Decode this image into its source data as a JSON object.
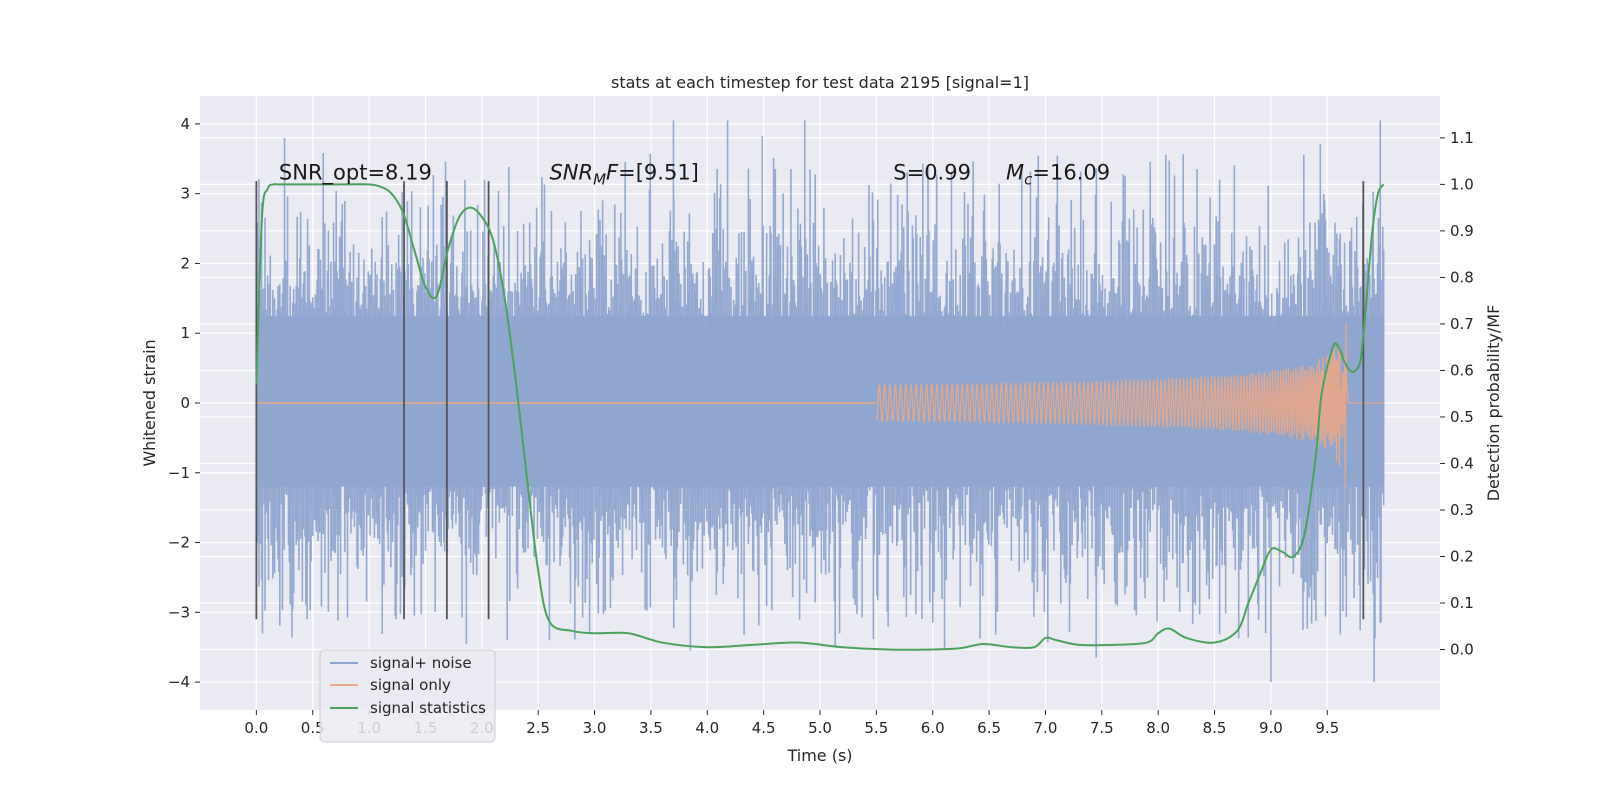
{
  "chart_data": {
    "type": "line",
    "title": "stats at each timestep for test data 2195 [signal=1]",
    "xlabel": "Time (s)",
    "ylabel": "Whitened strain",
    "y2label": "Detection probability/MF",
    "xlim": [
      -0.5,
      10.5
    ],
    "ylim": [
      -4.4,
      4.4
    ],
    "y2lim": [
      -0.13,
      1.19
    ],
    "x_ticks": [
      0.0,
      0.5,
      1.0,
      1.5,
      2.0,
      2.5,
      3.0,
      3.5,
      4.0,
      4.5,
      5.0,
      5.5,
      6.0,
      6.5,
      7.0,
      7.5,
      8.0,
      8.5,
      9.0,
      9.5
    ],
    "x_tick_labels": [
      "0.0",
      "0.5",
      "1.0",
      "1.5",
      "2.0",
      "2.5",
      "3.0",
      "3.5",
      "4.0",
      "4.5",
      "5.0",
      "5.5",
      "6.0",
      "6.5",
      "7.0",
      "7.5",
      "8.0",
      "8.5",
      "9.0",
      "9.5"
    ],
    "y_ticks": [
      4,
      3,
      2,
      1,
      0,
      -1,
      -2,
      -3,
      -4
    ],
    "y_tick_labels": [
      "4",
      "3",
      "2",
      "1",
      "0",
      "−1",
      "−2",
      "−3",
      "−4"
    ],
    "y2_ticks": [
      1.1,
      1.0,
      0.9,
      0.8,
      0.7,
      0.6,
      0.5,
      0.4,
      0.3,
      0.2,
      0.1,
      0.0
    ],
    "y2_tick_labels": [
      "1.1",
      "1.0",
      "0.9",
      "0.8",
      "0.7",
      "0.6",
      "0.5",
      "0.4",
      "0.3",
      "0.2",
      "0.1",
      "0.0"
    ],
    "annotations": [
      {
        "text": "SNR_opt=8.19",
        "x": 0.2,
        "y": 3.2
      },
      {
        "text": "SNR_MF=[9.51]",
        "x": 2.6,
        "y": 3.2
      },
      {
        "text": "S=0.99",
        "x": 5.65,
        "y": 3.2
      },
      {
        "text": "M_c=16.09",
        "x": 6.65,
        "y": 3.2
      }
    ],
    "vertical_markers": {
      "x": [
        0.0,
        1.31,
        1.69,
        2.06,
        9.82
      ],
      "y_range": [
        -3.1,
        3.18
      ],
      "color": "#555555"
    },
    "series": [
      {
        "name": "signal+ noise",
        "axis": "left",
        "color": "#8ea5cf",
        "style": "dense noise trace",
        "t_range": [
          0.0,
          10.0
        ],
        "typical_range": [
          -1.2,
          1.25
        ],
        "extreme_range": [
          -4.0,
          4.05
        ]
      },
      {
        "name": "signal only",
        "axis": "left",
        "color": "#e9a987",
        "style": "chirp",
        "t_range": [
          0.0,
          10.0
        ],
        "onset_s": 5.5,
        "merger_s": 9.67,
        "peak_amplitude": 1.45
      },
      {
        "name": "signal statistics",
        "axis": "right",
        "color": "#4aa35a",
        "x": [
          0.0,
          0.05,
          0.1,
          0.15,
          0.2,
          0.4,
          0.6,
          0.8,
          1.0,
          1.1,
          1.2,
          1.3,
          1.4,
          1.5,
          1.6,
          1.7,
          1.8,
          1.9,
          2.0,
          2.1,
          2.2,
          2.3,
          2.4,
          2.5,
          2.6,
          2.8,
          3.0,
          3.3,
          3.6,
          4.0,
          4.4,
          4.8,
          5.2,
          5.6,
          6.0,
          6.25,
          6.45,
          6.7,
          6.9,
          7.0,
          7.1,
          7.3,
          7.6,
          7.9,
          8.0,
          8.1,
          8.25,
          8.5,
          8.7,
          8.8,
          8.9,
          9.0,
          9.1,
          9.2,
          9.3,
          9.4,
          9.45,
          9.55,
          9.6,
          9.65,
          9.7,
          9.75,
          9.8,
          9.85,
          9.9,
          9.95,
          10.0
        ],
        "values": [
          0.57,
          0.93,
          0.99,
          1.0,
          1.0,
          1.0,
          1.0,
          1.0,
          1.0,
          0.995,
          0.98,
          0.94,
          0.86,
          0.78,
          0.76,
          0.86,
          0.93,
          0.95,
          0.93,
          0.88,
          0.76,
          0.58,
          0.37,
          0.17,
          0.06,
          0.04,
          0.035,
          0.035,
          0.015,
          0.005,
          0.01,
          0.015,
          0.005,
          0.0,
          0.0,
          0.003,
          0.012,
          0.005,
          0.005,
          0.025,
          0.02,
          0.01,
          0.01,
          0.015,
          0.035,
          0.045,
          0.025,
          0.015,
          0.04,
          0.1,
          0.16,
          0.215,
          0.21,
          0.2,
          0.25,
          0.42,
          0.55,
          0.65,
          0.65,
          0.62,
          0.6,
          0.6,
          0.63,
          0.76,
          0.9,
          0.98,
          1.0
        ]
      }
    ],
    "legend": {
      "placement": "lower-left",
      "entries": [
        "signal+ noise",
        "signal only",
        "signal statistics"
      ]
    }
  }
}
